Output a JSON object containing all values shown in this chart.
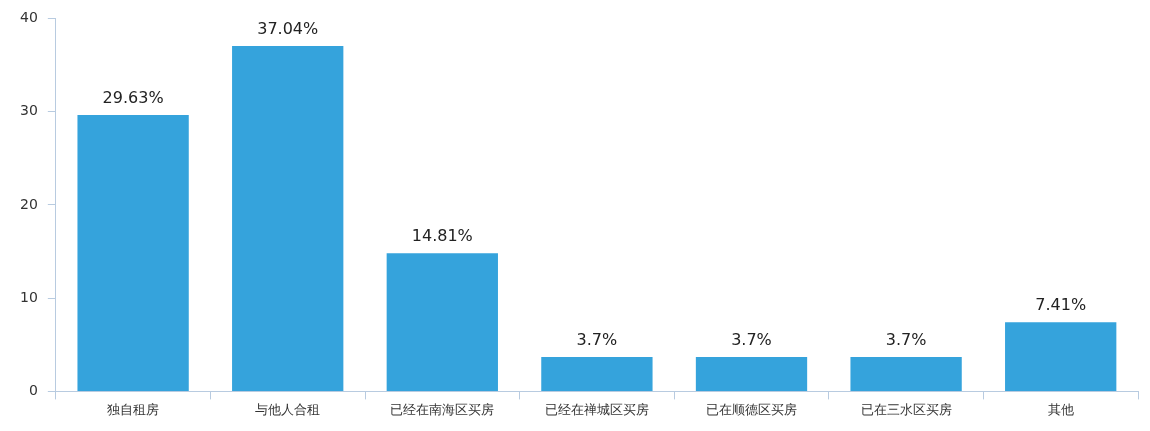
{
  "chart_data": {
    "type": "bar",
    "categories": [
      "独自租房",
      "与他人合租",
      "已经在南海区买房",
      "已经在禅城区买房",
      "已在顺德区买房",
      "已在三水区买房",
      "其他"
    ],
    "values": [
      29.63,
      37.04,
      14.81,
      3.7,
      3.7,
      3.7,
      7.41
    ],
    "value_labels": [
      "29.63%",
      "37.04%",
      "14.81%",
      "3.7%",
      "3.7%",
      "3.7%",
      "7.41%"
    ],
    "color": "#35a3dc",
    "ylim": [
      0,
      40
    ],
    "yticks": [
      0,
      10,
      20,
      30,
      40
    ],
    "grid": false,
    "legend": false
  }
}
